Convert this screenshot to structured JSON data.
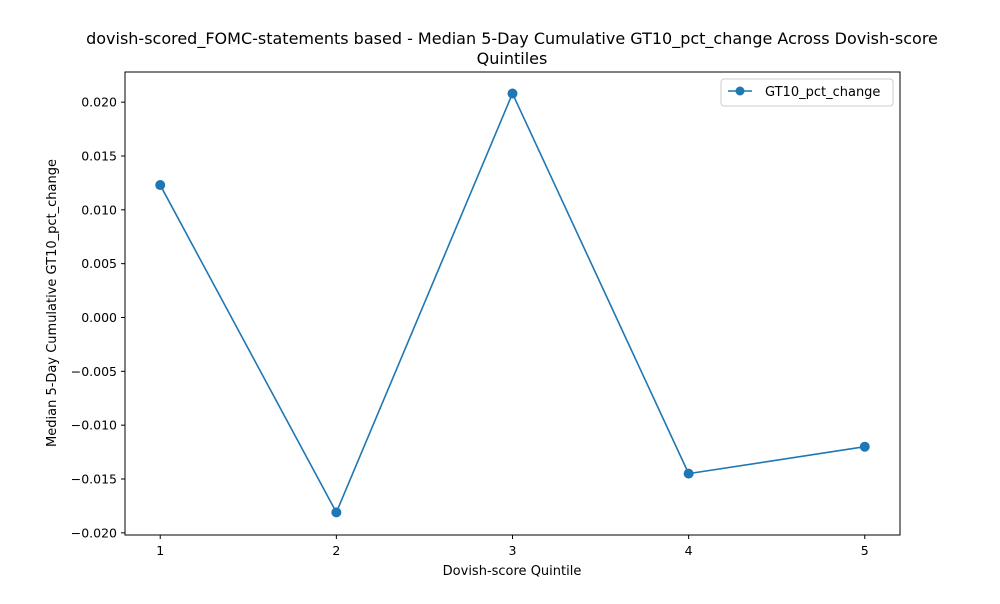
{
  "chart_data": {
    "type": "line",
    "title_line1": "dovish-scored_FOMC-statements based - Median 5-Day Cumulative GT10_pct_change Across Dovish-score",
    "title_line2": "Quintiles",
    "xlabel": "Dovish-score Quintile",
    "ylabel": "Median 5-Day Cumulative GT10_pct_change",
    "x": [
      1,
      2,
      3,
      4,
      5
    ],
    "x_tick_labels": [
      "1",
      "2",
      "3",
      "4",
      "5"
    ],
    "y_ticks": [
      -0.02,
      -0.015,
      -0.01,
      -0.005,
      0.0,
      0.005,
      0.01,
      0.015,
      0.02
    ],
    "y_tick_labels": [
      "−0.020",
      "−0.015",
      "−0.010",
      "−0.005",
      "0.000",
      "0.005",
      "0.010",
      "0.015",
      "0.020"
    ],
    "xlim": [
      0.8,
      5.2
    ],
    "ylim": [
      -0.0202,
      0.0228
    ],
    "series": [
      {
        "name": "GT10_pct_change",
        "values": [
          0.0123,
          -0.0181,
          0.0208,
          -0.0145,
          -0.012
        ],
        "color": "#1f77b4",
        "marker": "circle"
      }
    ],
    "legend": {
      "position": "top-right"
    },
    "grid": false
  }
}
